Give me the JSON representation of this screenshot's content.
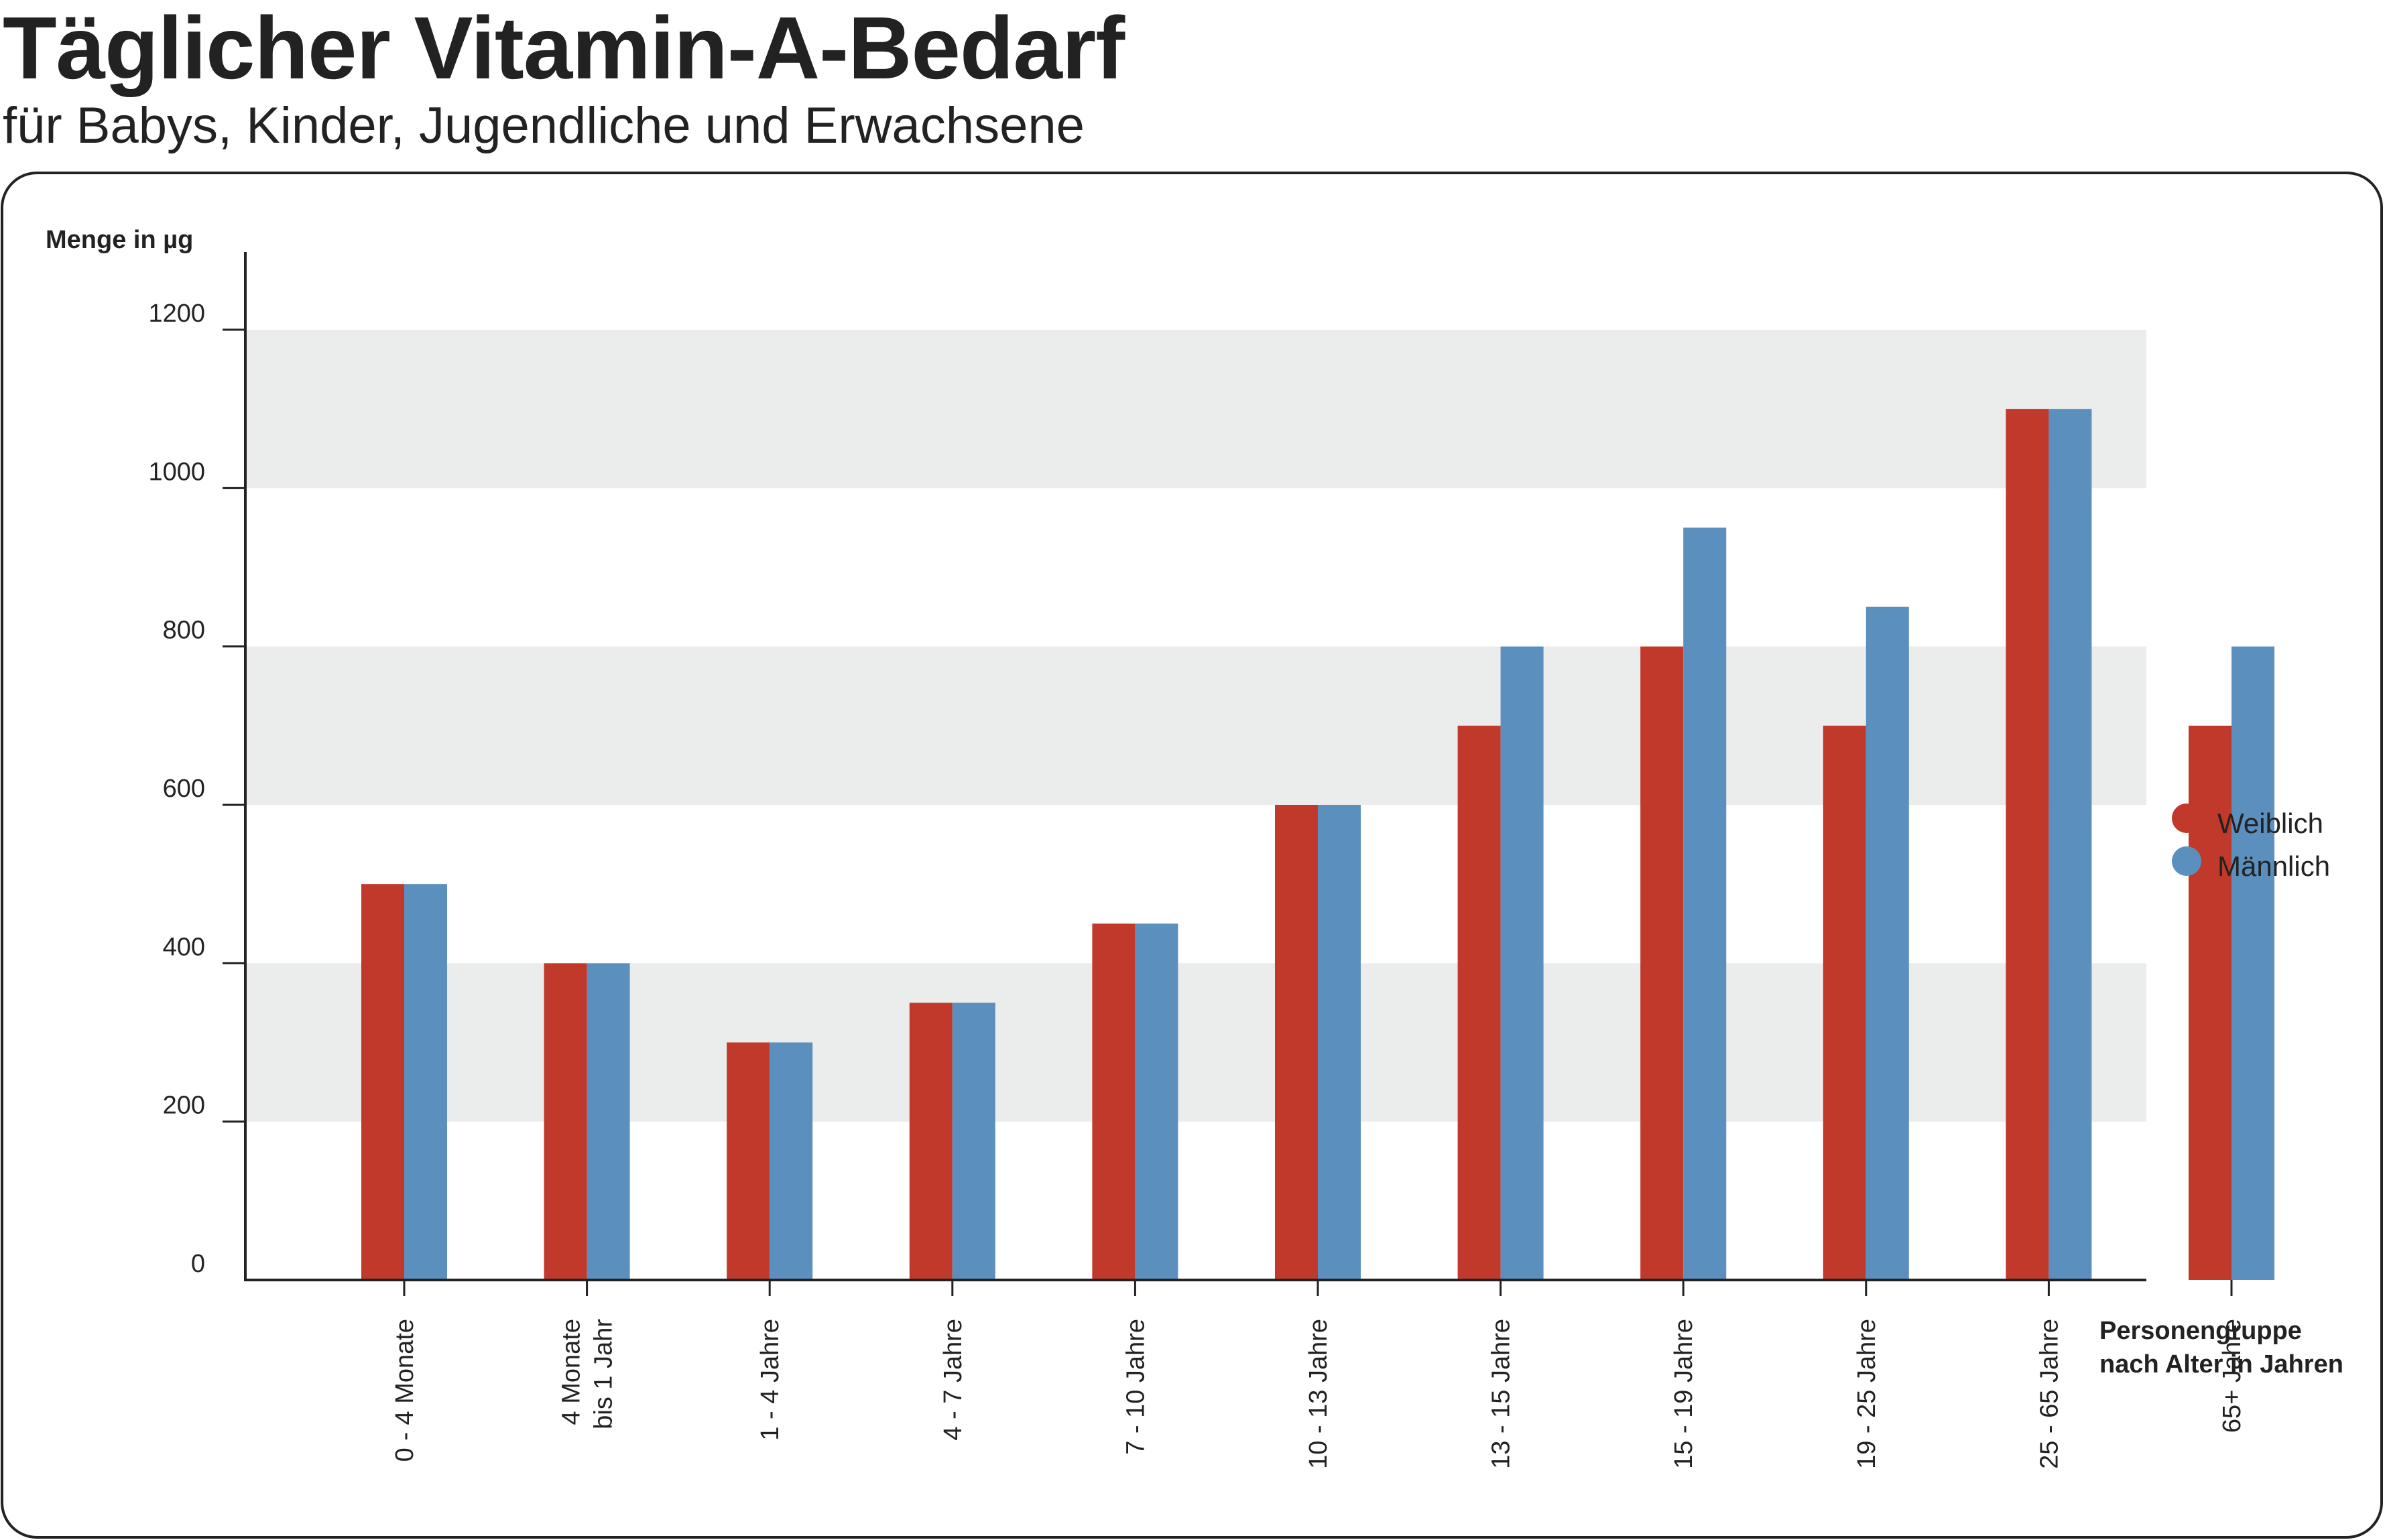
{
  "title": "Täglicher Vitamin-A-Bedarf",
  "subtitle": "für Babys, Kinder, Jugendliche und Erwachsene",
  "colors": {
    "weiblich": "#c0392b",
    "maennlich": "#5b8fbe",
    "band": "#ebecec",
    "axis": "#222222",
    "frame": "#222222"
  },
  "chart_data": {
    "type": "bar",
    "title": "Täglicher Vitamin-A-Bedarf",
    "subtitle": "für Babys, Kinder, Jugendliche und Erwachsene",
    "ylabel": "Menge in µg",
    "xlabel": [
      "Personengruppe",
      "nach Alter in Jahren"
    ],
    "ylim": [
      0,
      1200
    ],
    "yticks": [
      0,
      200,
      400,
      600,
      800,
      1000,
      1200
    ],
    "grid": "alternating horizontal bands",
    "legend_position": "right",
    "categories": [
      [
        "0 - 4 Monate"
      ],
      [
        "4 Monate",
        "bis 1 Jahr"
      ],
      [
        "1 - 4 Jahre"
      ],
      [
        "4 - 7 Jahre"
      ],
      [
        "7 - 10 Jahre"
      ],
      [
        "10 - 13 Jahre"
      ],
      [
        "13 - 15 Jahre"
      ],
      [
        "15 - 19 Jahre"
      ],
      [
        "19 - 25 Jahre"
      ],
      [
        "25 - 65 Jahre"
      ],
      [
        "65+ Jahre"
      ]
    ],
    "series": [
      {
        "name": "Weiblich",
        "color": "#c0392b",
        "values": [
          500,
          400,
          300,
          350,
          450,
          600,
          700,
          800,
          700,
          1100,
          700
        ]
      },
      {
        "name": "Männlich",
        "color": "#5b8fbe",
        "values": [
          500,
          400,
          300,
          350,
          450,
          600,
          800,
          950,
          850,
          1100,
          800
        ]
      }
    ]
  }
}
